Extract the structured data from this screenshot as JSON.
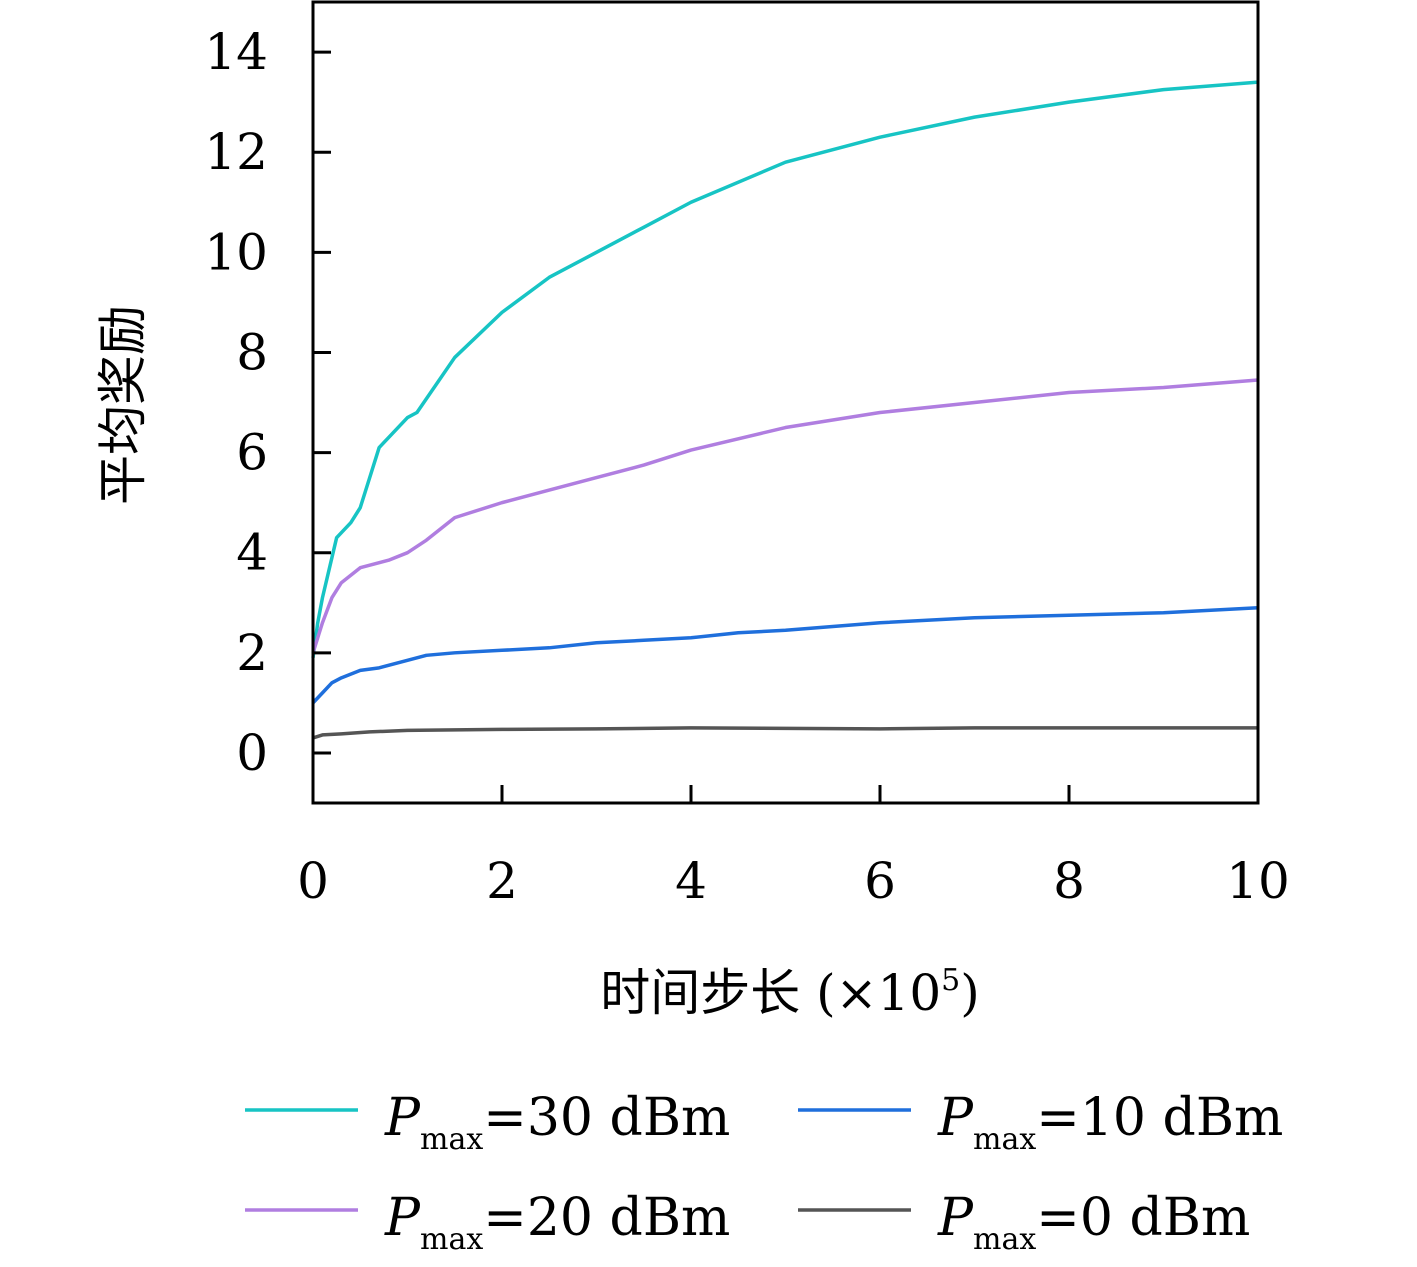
{
  "chart_data": {
    "type": "line",
    "title": "",
    "xlabel": "时间步长 (×10",
    "xlabel_exp": "5",
    "xlabel_end": ")",
    "ylabel": "平均奖励",
    "xlim": [
      0,
      10
    ],
    "ylim": [
      -1,
      15
    ],
    "xticks": [
      0,
      2,
      4,
      6,
      8,
      10
    ],
    "yticks": [
      0,
      2,
      4,
      6,
      8,
      10,
      12,
      14
    ],
    "grid": false,
    "legend_position": "bottom",
    "series": [
      {
        "symbol": "P",
        "sub": "max",
        "rest": "=30 dBm",
        "color": "#17c4c4",
        "x": [
          0,
          0.05,
          0.1,
          0.2,
          0.25,
          0.4,
          0.5,
          0.6,
          0.7,
          0.8,
          1,
          1.1,
          1.5,
          2,
          2.5,
          3,
          3.5,
          4,
          5,
          6,
          7,
          8,
          9,
          10
        ],
        "y": [
          1.9,
          2.6,
          3.1,
          3.9,
          4.3,
          4.6,
          4.9,
          5.5,
          6.1,
          6.3,
          6.7,
          6.8,
          7.9,
          8.8,
          9.5,
          10.0,
          10.5,
          11.0,
          11.8,
          12.3,
          12.7,
          13.0,
          13.25,
          13.4
        ]
      },
      {
        "symbol": "P",
        "sub": "max",
        "rest": "=20 dBm",
        "color": "#b07ee0",
        "x": [
          0,
          0.05,
          0.1,
          0.2,
          0.3,
          0.5,
          0.8,
          1,
          1.2,
          1.5,
          2,
          2.5,
          3,
          3.5,
          4,
          5,
          6,
          7,
          8,
          9,
          10
        ],
        "y": [
          2.0,
          2.3,
          2.6,
          3.1,
          3.4,
          3.7,
          3.85,
          4.0,
          4.25,
          4.7,
          5.0,
          5.25,
          5.5,
          5.75,
          6.05,
          6.5,
          6.8,
          7.0,
          7.2,
          7.3,
          7.45
        ]
      },
      {
        "symbol": "P",
        "sub": "max",
        "rest": "=10 dBm",
        "color": "#1f6fdc",
        "x": [
          0,
          0.1,
          0.2,
          0.3,
          0.5,
          0.7,
          1,
          1.2,
          1.5,
          2,
          2.5,
          3,
          3.5,
          4,
          4.5,
          5,
          6,
          7,
          8,
          9,
          10
        ],
        "y": [
          1.0,
          1.2,
          1.4,
          1.5,
          1.65,
          1.7,
          1.85,
          1.95,
          2.0,
          2.05,
          2.1,
          2.2,
          2.25,
          2.3,
          2.4,
          2.45,
          2.6,
          2.7,
          2.75,
          2.8,
          2.9
        ]
      },
      {
        "symbol": "P",
        "sub": "max",
        "rest": "=0 dBm",
        "color": "#555555",
        "x": [
          0,
          0.1,
          0.3,
          0.6,
          1,
          2,
          3,
          4,
          5,
          6,
          7,
          8,
          9,
          10
        ],
        "y": [
          0.3,
          0.36,
          0.38,
          0.42,
          0.45,
          0.47,
          0.48,
          0.5,
          0.49,
          0.48,
          0.5,
          0.5,
          0.5,
          0.5
        ]
      }
    ]
  }
}
